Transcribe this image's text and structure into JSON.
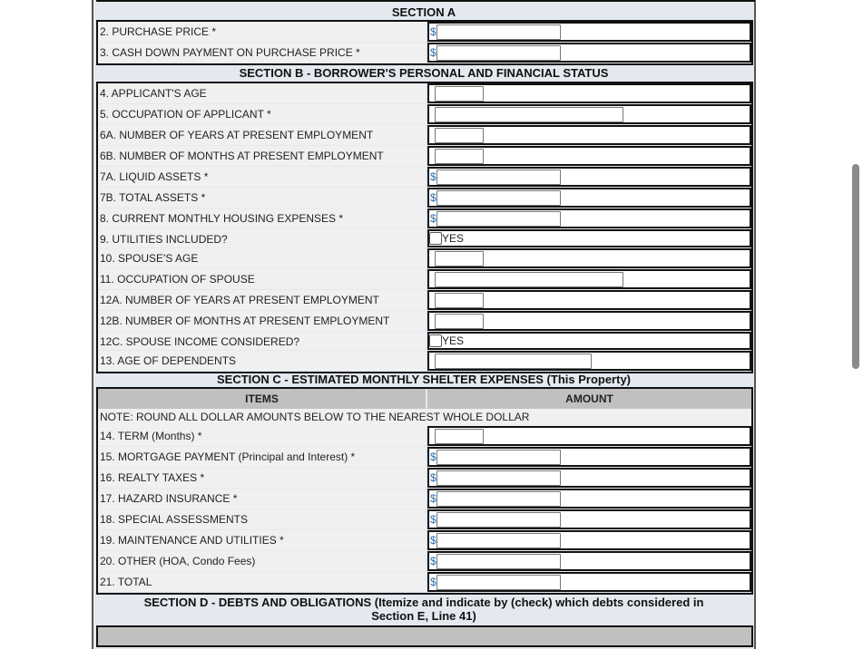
{
  "section_a": {
    "title": "SECTION A",
    "rows": [
      {
        "label": "2. PURCHASE PRICE *",
        "type": "money",
        "prefix": "$",
        "value": ""
      },
      {
        "label": "3. CASH DOWN PAYMENT ON PURCHASE PRICE *",
        "type": "money",
        "prefix": "$",
        "value": ""
      }
    ]
  },
  "section_b": {
    "title": "SECTION B - BORROWER'S PERSONAL AND FINANCIAL STATUS",
    "rows": [
      {
        "label": "4. APPLICANT'S AGE",
        "type": "small",
        "value": ""
      },
      {
        "label": "5. OCCUPATION OF APPLICANT *",
        "type": "occ",
        "value": ""
      },
      {
        "label": "6A. NUMBER OF YEARS AT PRESENT EMPLOYMENT",
        "type": "small",
        "value": ""
      },
      {
        "label": "6B. NUMBER OF MONTHS AT PRESENT EMPLOYMENT",
        "type": "small",
        "value": ""
      },
      {
        "label": "7A. LIQUID ASSETS *",
        "type": "money",
        "prefix": "$",
        "value": ""
      },
      {
        "label": "7B. TOTAL ASSETS *",
        "type": "money",
        "prefix": "$",
        "value": ""
      },
      {
        "label": "8. CURRENT MONTHLY HOUSING EXPENSES *",
        "type": "money",
        "prefix": "$",
        "value": ""
      },
      {
        "label": "9. UTILITIES INCLUDED?",
        "type": "check",
        "option": "YES",
        "checked": false
      },
      {
        "label": "10. SPOUSE'S AGE",
        "type": "small",
        "value": ""
      },
      {
        "label": "11. OCCUPATION OF SPOUSE",
        "type": "occ",
        "value": ""
      },
      {
        "label": "12A. NUMBER OF YEARS AT PRESENT EMPLOYMENT",
        "type": "small",
        "value": ""
      },
      {
        "label": "12B. NUMBER OF MONTHS AT PRESENT EMPLOYMENT",
        "type": "small",
        "value": ""
      },
      {
        "label": "12C. SPOUSE INCOME CONSIDERED?",
        "type": "check",
        "option": "YES",
        "checked": false
      },
      {
        "label": "13. AGE OF DEPENDENTS",
        "type": "dep",
        "value": ""
      }
    ]
  },
  "section_c": {
    "title": "SECTION C - ESTIMATED MONTHLY SHELTER EXPENSES (This Property)",
    "col_items": "ITEMS",
    "col_amount": "AMOUNT",
    "note": "NOTE: ROUND ALL DOLLAR AMOUNTS BELOW TO THE NEAREST WHOLE DOLLAR",
    "rows": [
      {
        "label": "14. TERM (Months) *",
        "type": "small",
        "value": ""
      },
      {
        "label": "15. MORTGAGE PAYMENT (Principal and Interest) *",
        "type": "money",
        "prefix": "$",
        "value": ""
      },
      {
        "label": "16. REALTY TAXES *",
        "type": "money",
        "prefix": "$",
        "value": ""
      },
      {
        "label": "17. HAZARD INSURANCE *",
        "type": "money",
        "prefix": "$",
        "value": ""
      },
      {
        "label": "18. SPECIAL ASSESSMENTS",
        "type": "money",
        "prefix": "$",
        "value": ""
      },
      {
        "label": "19. MAINTENANCE AND UTILITIES *",
        "type": "money",
        "prefix": "$",
        "value": ""
      },
      {
        "label": "20. OTHER (HOA, Condo Fees)",
        "type": "money",
        "prefix": "$",
        "value": ""
      },
      {
        "label": "21. TOTAL",
        "type": "money",
        "prefix": "$",
        "value": ""
      }
    ]
  },
  "section_d": {
    "title_line1": "SECTION D - DEBTS AND OBLIGATIONS (Itemize and indicate by (check) which debts considered in",
    "title_line2": "Section E, Line 41)"
  },
  "colors": {
    "page_bg": "#e4e9f0",
    "label_bg": "#f0f0f0",
    "header_bg": "#c0c0c0",
    "dollar": "#2a6db0"
  }
}
